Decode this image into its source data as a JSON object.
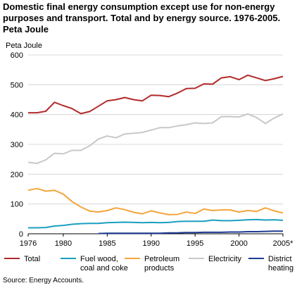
{
  "title": "Domestic final energy consumption except use for non-energy purposes and transport. Total and by energy source. 1976-2005. Peta Joule",
  "source": "Source: Energy Accounts.",
  "chart_data": {
    "type": "line",
    "title": "Domestic final energy consumption except use for non-energy purposes and transport. Total and by energy source. 1976-2005. Peta Joule",
    "ylabel": "Peta Joule",
    "xlabel": "",
    "ylim": [
      0,
      600
    ],
    "yticks": [
      0,
      100,
      200,
      300,
      400,
      500,
      600
    ],
    "xticks": [
      "1976",
      "1980",
      "1985",
      "1990",
      "1995",
      "2000",
      "2005*"
    ],
    "grid": true,
    "legend_position": "bottom",
    "x": [
      1976,
      1977,
      1978,
      1979,
      1980,
      1981,
      1982,
      1983,
      1984,
      1985,
      1986,
      1987,
      1988,
      1989,
      1990,
      1991,
      1992,
      1993,
      1994,
      1995,
      1996,
      1997,
      1998,
      1999,
      2000,
      2001,
      2002,
      2003,
      2004,
      2005
    ],
    "series": [
      {
        "name": "Total",
        "color": "#b22a2a",
        "values": [
          406,
          406,
          411,
          441,
          430,
          420,
          403,
          410,
          428,
          446,
          450,
          457,
          450,
          446,
          465,
          464,
          460,
          472,
          487,
          488,
          503,
          502,
          523,
          527,
          517,
          532,
          523,
          514,
          520,
          528
        ]
      },
      {
        "name": "Fuel wood, coal and coke",
        "color": "#1a9fc0",
        "values": [
          20,
          20,
          21,
          26,
          28,
          32,
          34,
          35,
          35,
          37,
          38,
          39,
          38,
          37,
          38,
          37,
          38,
          41,
          42,
          42,
          42,
          46,
          44,
          44,
          45,
          47,
          48,
          46,
          47,
          45
        ]
      },
      {
        "name": "Petroleum products",
        "color": "#f4a53c",
        "values": [
          146,
          152,
          143,
          146,
          133,
          108,
          90,
          76,
          73,
          78,
          87,
          81,
          72,
          67,
          77,
          70,
          64,
          65,
          73,
          68,
          83,
          78,
          80,
          80,
          73,
          78,
          75,
          87,
          77,
          70
        ]
      },
      {
        "name": "Electricity",
        "color": "#c8c8c8",
        "values": [
          240,
          236,
          248,
          270,
          268,
          280,
          280,
          295,
          318,
          328,
          322,
          335,
          337,
          340,
          348,
          356,
          356,
          362,
          366,
          372,
          370,
          372,
          393,
          393,
          392,
          402,
          390,
          370,
          388,
          402
        ]
      },
      {
        "name": "District heating",
        "color": "#1f3a93",
        "values": [
          null,
          null,
          null,
          null,
          null,
          null,
          null,
          null,
          1,
          2,
          2,
          2,
          2,
          2,
          2,
          2,
          3,
          3,
          4,
          4,
          5,
          5,
          5,
          6,
          6,
          7,
          7,
          8,
          9,
          9
        ]
      }
    ]
  },
  "legend": [
    {
      "label": "Total",
      "color": "#b22a2a"
    },
    {
      "label": "Fuel wood, coal and coke",
      "color": "#1a9fc0"
    },
    {
      "label": "Petroleum products",
      "color": "#f4a53c"
    },
    {
      "label": "Electricity",
      "color": "#c8c8c8"
    },
    {
      "label": "District heating",
      "color": "#1f3a93"
    }
  ]
}
